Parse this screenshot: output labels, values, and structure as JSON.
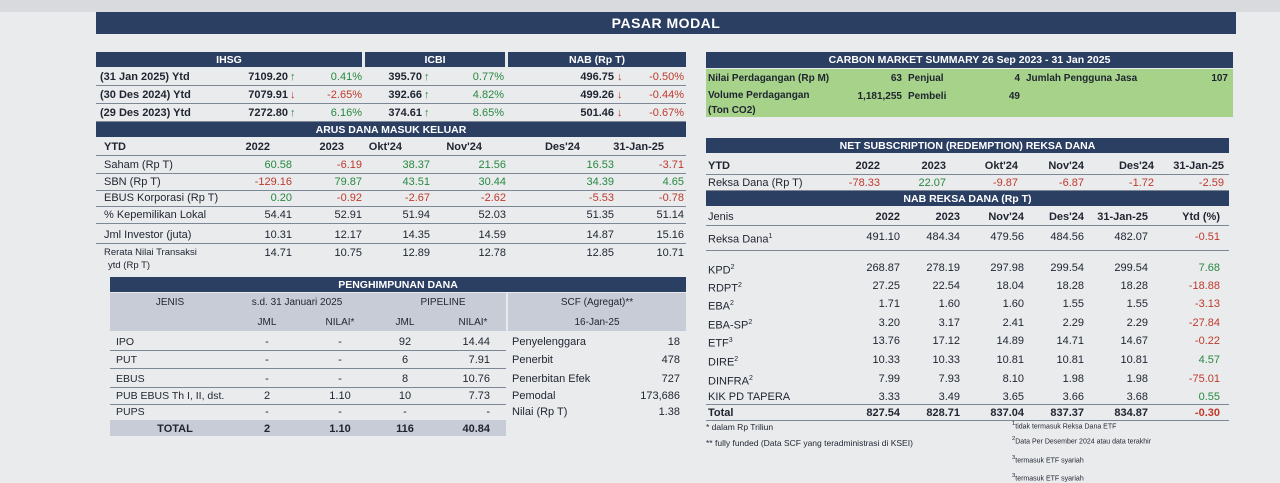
{
  "title": "PASAR MODAL",
  "market": {
    "headers": [
      "IHSG",
      "ICBI",
      "NAB (Rp T)"
    ],
    "rows": [
      {
        "label": "(31 Jan 2025) Ytd",
        "ihsg": "7109.20",
        "ihsg_dir": "up",
        "ihsg_pct": "0.41%",
        "icbi": "395.70",
        "icbi_dir": "up",
        "icbi_pct": "0.77%",
        "nab": "496.75",
        "nab_dir": "down",
        "nab_pct": "-0.50%"
      },
      {
        "label": "(30 Des 2024) Ytd",
        "ihsg": "7079.91",
        "ihsg_dir": "down",
        "ihsg_pct": "-2.65%",
        "icbi": "392.66",
        "icbi_dir": "up",
        "icbi_pct": "4.82%",
        "nab": "499.26",
        "nab_dir": "down",
        "nab_pct": "-0.44%"
      },
      {
        "label": "(29 Des 2023) Ytd",
        "ihsg": "7272.80",
        "ihsg_dir": "up",
        "ihsg_pct": "6.16%",
        "icbi": "374.61",
        "icbi_dir": "up",
        "icbi_pct": "8.65%",
        "nab": "501.46",
        "nab_dir": "down",
        "nab_pct": "-0.67%"
      }
    ]
  },
  "flows": {
    "title": "ARUS DANA MASUK KELUAR",
    "columns": [
      "YTD",
      "2022",
      "2023",
      "Okt'24",
      "Nov'24",
      "Des'24",
      "31-Jan-25"
    ],
    "rows": [
      {
        "label": "Saham (Rp T)",
        "values": [
          "60.58",
          "-6.19",
          "38.37",
          "21.56",
          "16.53",
          "-3.71"
        ]
      },
      {
        "label": "SBN (Rp T)",
        "values": [
          "-129.16",
          "79.87",
          "43.51",
          "30.44",
          "34.39",
          "4.65"
        ]
      },
      {
        "label": "EBUS Korporasi (Rp T)",
        "values": [
          "0.20",
          "-0.92",
          "-2.67",
          "-2.62",
          "-5.53",
          "-0.78"
        ]
      },
      {
        "label": "% Kepemilikan Lokal",
        "values": [
          "54.41",
          "52.91",
          "51.94",
          "52.03",
          "51.35",
          "51.14"
        ]
      },
      {
        "label": "Jml Investor (juta)",
        "values": [
          "10.31",
          "12.17",
          "14.35",
          "14.59",
          "14.87",
          "15.16"
        ]
      },
      {
        "label": "Rerata Nilai Transaksi",
        "label2": "ytd (Rp T)",
        "values": [
          "14.71",
          "10.75",
          "12.89",
          "12.78",
          "12.85",
          "10.71"
        ]
      }
    ]
  },
  "fundraising": {
    "title": "PENGHIMPUNAN DANA",
    "jenis": "JENIS",
    "period": "s.d. 31 Januari 2025",
    "pipeline": "PIPELINE",
    "scf": "SCF (Agregat)**",
    "scf_date": "16-Jan-25",
    "sub": [
      "JML",
      "NILAI*",
      "JML",
      "NILAI*"
    ],
    "rows": [
      {
        "label": "IPO",
        "jml": "-",
        "nilai": "-",
        "pjml": "92",
        "pnilai": "14.44",
        "scf_label": "Penyelenggara",
        "scf_val": "18"
      },
      {
        "label": "PUT",
        "jml": "-",
        "nilai": "-",
        "pjml": "6",
        "pnilai": "7.91",
        "scf_label": "Penerbit",
        "scf_val": "478"
      },
      {
        "label": "EBUS",
        "jml": "-",
        "nilai": "-",
        "pjml": "8",
        "pnilai": "10.76",
        "scf_label": "Penerbitan Efek",
        "scf_val": "727"
      },
      {
        "label": "PUB EBUS Th I, II, dst.",
        "jml": "2",
        "nilai": "1.10",
        "pjml": "10",
        "pnilai": "7.73",
        "scf_label": "Pemodal",
        "scf_val": "173,686"
      },
      {
        "label": "PUPS",
        "jml": "-",
        "nilai": "-",
        "pjml": "-",
        "pnilai": "-",
        "scf_label": "Nilai (Rp T)",
        "scf_val": "1.38"
      }
    ],
    "total": {
      "label": "TOTAL",
      "jml": "2",
      "nilai": "1.10",
      "pjml": "116",
      "pnilai": "40.84"
    },
    "note1": "* dalam Rp Triliun",
    "note2": "** fully funded (Data SCF yang teradministrasi di KSEI)"
  },
  "carbon": {
    "title": "CARBON MARKET SUMMARY 26 Sep 2023 - 31 Jan 2025",
    "row1_label": "Nilai Perdagangan (Rp M)",
    "row1_value": "63",
    "penjual_label": "Penjual",
    "penjual_value": "4",
    "users_label": "Jumlah Pengguna Jasa",
    "users_value": "107",
    "row2_label": "Volume Perdagangan",
    "row2_label2": "(Ton CO2)",
    "row2_value": "1,181,255",
    "pembeli_label": "Pembeli",
    "pembeli_value": "49"
  },
  "subscription": {
    "title": "NET SUBSCRIPTION (REDEMPTION) REKSA DANA",
    "columns": [
      "YTD",
      "2022",
      "2023",
      "Okt'24",
      "Nov'24",
      "Des'24",
      "31-Jan-25"
    ],
    "row": {
      "label": "Reksa Dana (Rp T)",
      "values": [
        "-78.33",
        "22.07",
        "-9.87",
        "-6.87",
        "-1.72",
        "-2.59"
      ]
    }
  },
  "nab": {
    "title": "NAB REKSA DANA (Rp T)",
    "columns": [
      "Jenis",
      "2022",
      "2023",
      "Nov'24",
      "Des'24",
      "31-Jan-25",
      "Ytd (%)"
    ],
    "rows": [
      {
        "label": "Reksa Dana",
        "sup": "1",
        "values": [
          "491.10",
          "484.34",
          "479.56",
          "484.56",
          "482.07"
        ],
        "ytd": "-0.51"
      },
      {
        "label": "KPD",
        "sup": "2",
        "values": [
          "268.87",
          "278.19",
          "297.98",
          "299.54",
          "299.54"
        ],
        "ytd": "7.68"
      },
      {
        "label": "RDPT",
        "sup": "2",
        "values": [
          "27.25",
          "22.54",
          "18.04",
          "18.28",
          "18.28"
        ],
        "ytd": "-18.88"
      },
      {
        "label": "EBA",
        "sup": "2",
        "values": [
          "1.71",
          "1.60",
          "1.60",
          "1.55",
          "1.55"
        ],
        "ytd": "-3.13"
      },
      {
        "label": "EBA-SP",
        "sup": "2",
        "values": [
          "3.20",
          "3.17",
          "2.41",
          "2.29",
          "2.29"
        ],
        "ytd": "-27.84"
      },
      {
        "label": "ETF",
        "sup": "3",
        "values": [
          "13.76",
          "17.12",
          "14.89",
          "14.71",
          "14.67"
        ],
        "ytd": "-0.22"
      },
      {
        "label": "DIRE",
        "sup": "2",
        "values": [
          "10.33",
          "10.33",
          "10.81",
          "10.81",
          "10.81"
        ],
        "ytd": "4.57"
      },
      {
        "label": "DINFRA",
        "sup": "2",
        "values": [
          "7.99",
          "7.93",
          "8.10",
          "1.98",
          "1.98"
        ],
        "ytd": "-75.01"
      },
      {
        "label": "KIK PD TAPERA",
        "sup": "",
        "values": [
          "3.33",
          "3.49",
          "3.65",
          "3.66",
          "3.68"
        ],
        "ytd": "0.55"
      }
    ],
    "total": {
      "label": "Total",
      "values": [
        "827.54",
        "828.71",
        "837.04",
        "837.37",
        "834.87"
      ],
      "ytd": "-0.30"
    },
    "foot1": "tidak termasuk Reksa Dana ETF",
    "foot2": "Data Per Desember 2024 atau data terakhir",
    "foot3": "termasuk ETF syariah",
    "foot4": "termasuk ETF syariah"
  },
  "colors": {
    "header": "#2b3f63",
    "positive": "#27893f",
    "negative": "#c0392b",
    "carbon_bg": "#a6d28a"
  }
}
